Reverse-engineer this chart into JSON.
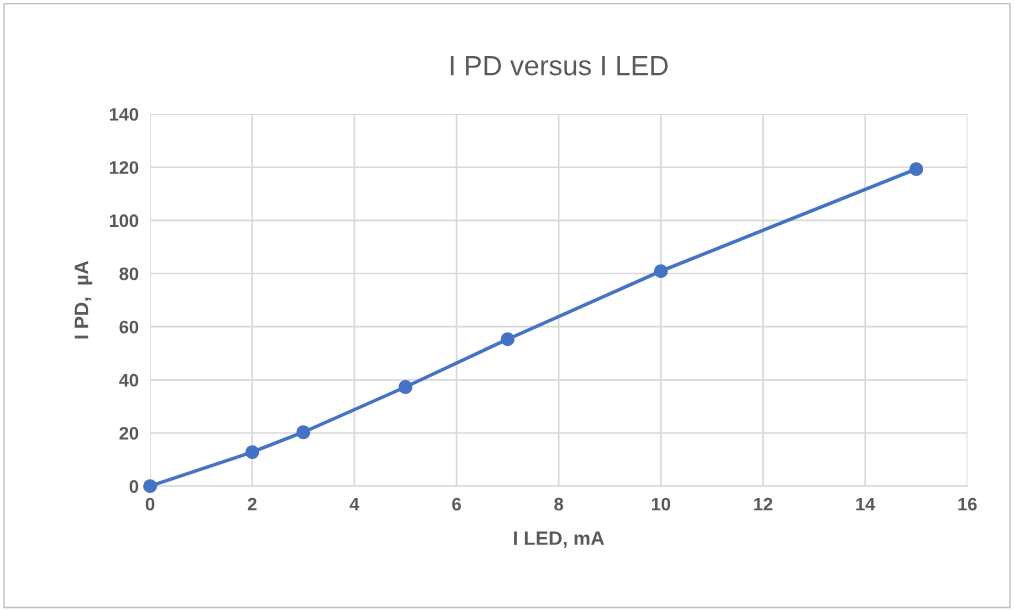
{
  "chart_data": {
    "type": "line",
    "title": "I PD versus I LED",
    "xlabel": "I LED, mA",
    "ylabel": "I PD,  µA",
    "series": [
      {
        "color": "#4472c4",
        "x": [
          0,
          2,
          3,
          5,
          7,
          10,
          15
        ],
        "values": [
          0,
          12.8,
          20.3,
          37.3,
          55.3,
          80.9,
          119.3
        ]
      }
    ],
    "xlim": [
      0,
      16
    ],
    "xticks": [
      0,
      2,
      4,
      6,
      8,
      10,
      12,
      14,
      16
    ],
    "ylim": [
      0,
      140
    ],
    "yticks": [
      0,
      20,
      40,
      60,
      80,
      100,
      120,
      140
    ],
    "grid": true,
    "marker": "circle",
    "line_style": "solid",
    "legend": false
  }
}
